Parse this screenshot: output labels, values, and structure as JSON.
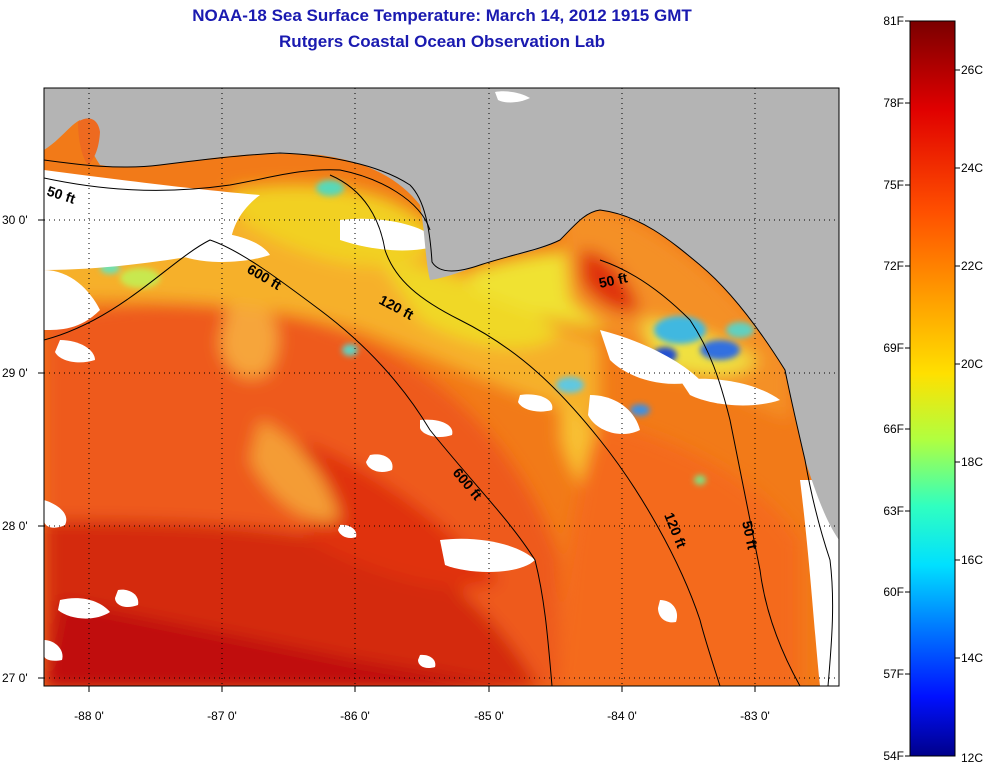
{
  "header": {
    "title": "NOAA-18 Sea Surface Temperature:  March 14, 2012 1915 GMT",
    "subtitle": "Rutgers Coastal Ocean Observation Lab"
  },
  "map": {
    "lat_labels": [
      "30 0'",
      "29 0'",
      "28 0'",
      "27 0'"
    ],
    "lon_labels": [
      "-88 0'",
      "-87 0'",
      "-86 0'",
      "-85 0'",
      "-84 0'",
      "-83 0'"
    ],
    "depth_labels": [
      "50 ft",
      "600 ft",
      "120 ft",
      "50 ft",
      "600 ft",
      "120 ft",
      "50 ft"
    ],
    "colors": {
      "land": "#b4b4b4",
      "cloud": "#ffffff",
      "warm": "#f06010",
      "hot": "#c80000",
      "cool": "#e8e020",
      "cold": "#40c0e8"
    }
  },
  "colorbar": {
    "fahrenheit": [
      "81F",
      "78F",
      "75F",
      "72F",
      "69F",
      "66F",
      "63F",
      "60F",
      "57F",
      "54F"
    ],
    "celsius": [
      "26C",
      "24C",
      "22C",
      "20C",
      "18C",
      "16C",
      "14C",
      "12C"
    ],
    "stops": [
      "#800000",
      "#ff0000",
      "#ff8000",
      "#ffff00",
      "#80ff80",
      "#00ffff",
      "#0080ff",
      "#0000ff",
      "#000080"
    ]
  }
}
